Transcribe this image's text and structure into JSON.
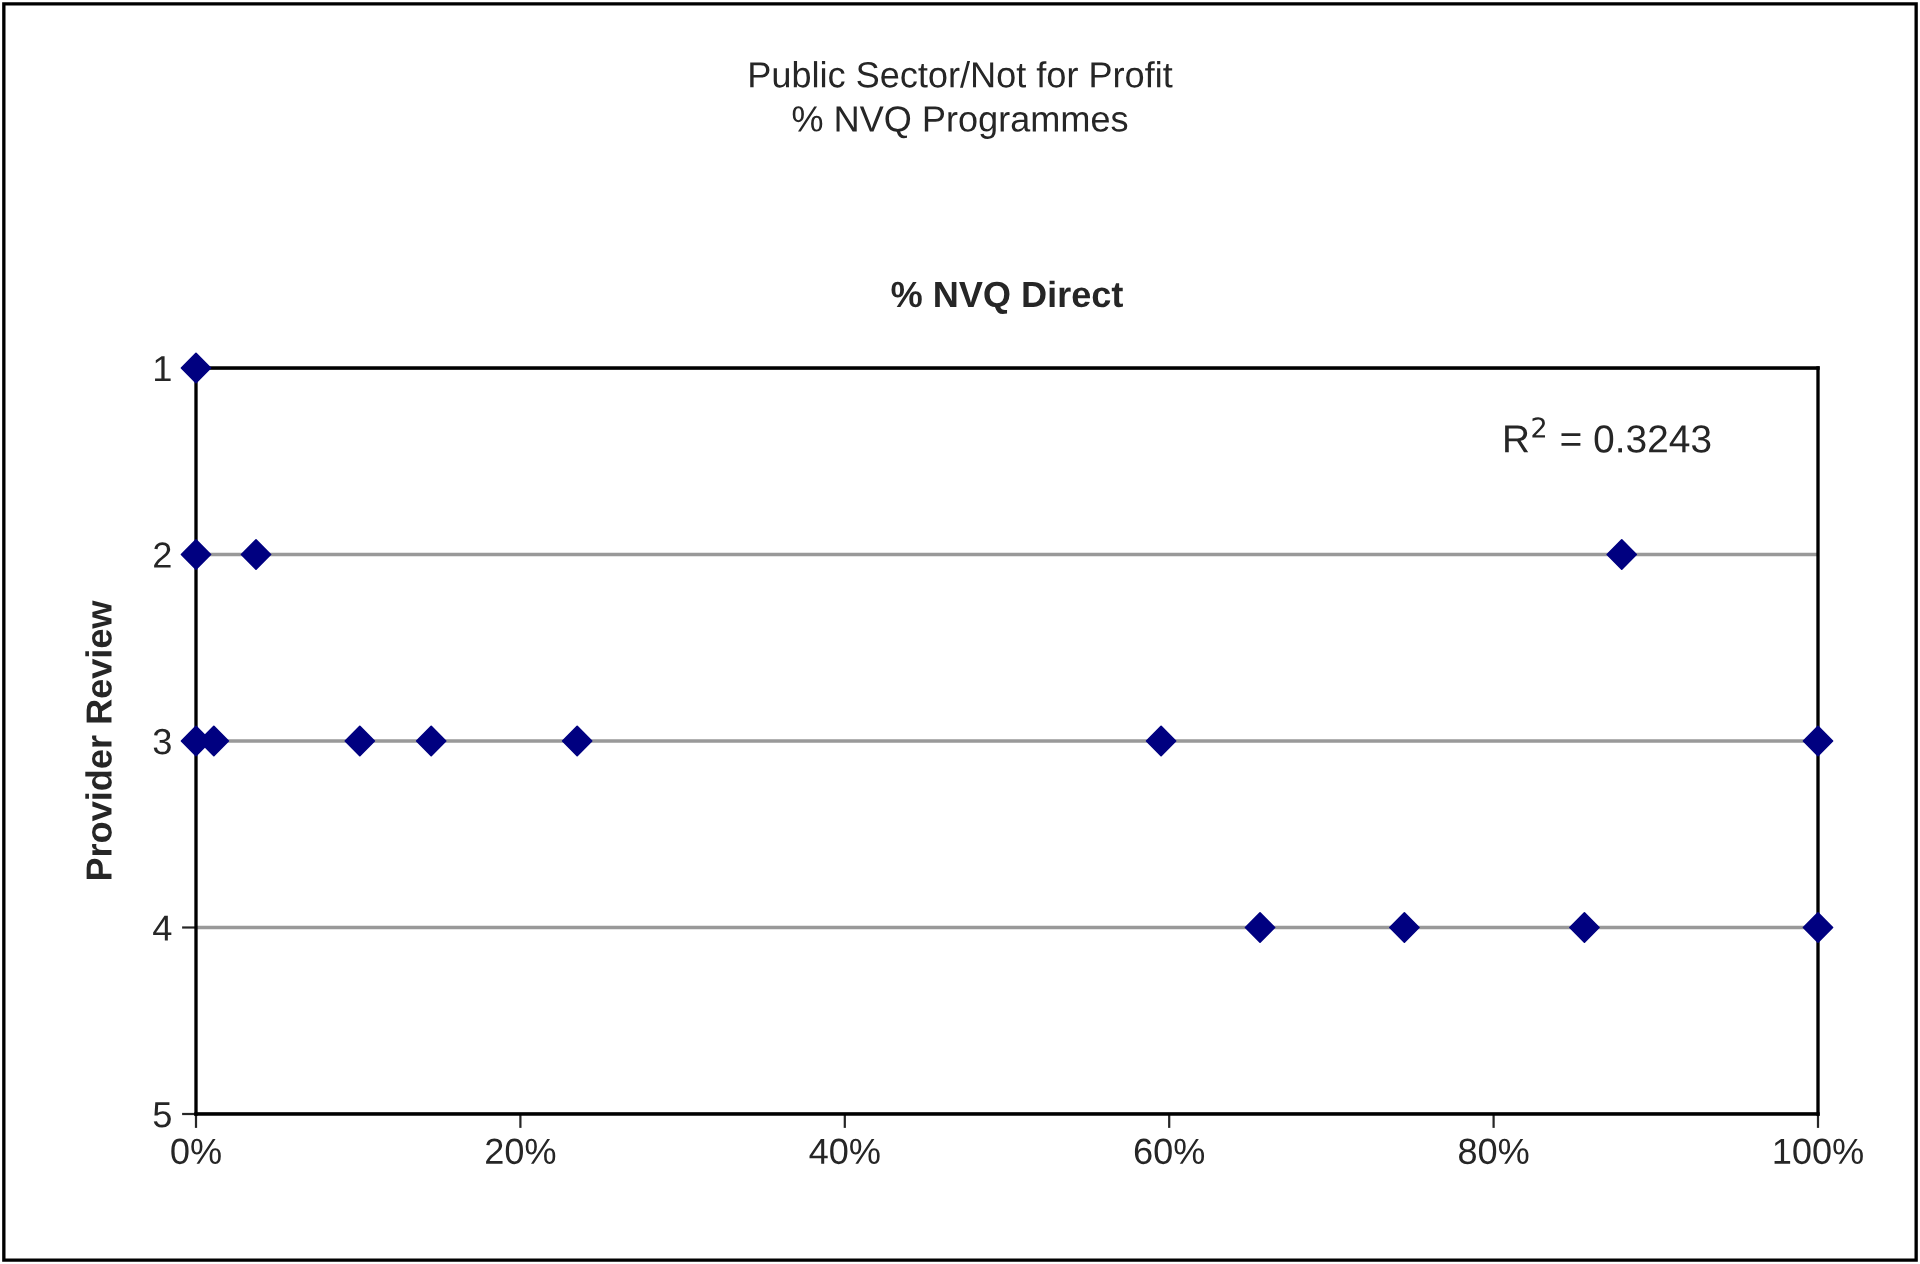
{
  "chart_data": {
    "type": "scatter",
    "title": "Public Sector/Not for Profit\n% NVQ Programmes",
    "subtitle": "% NVQ Direct",
    "ylabel": "Provider Review",
    "annotations": [
      "R$^{2}$ = 0.3243"
    ],
    "marker": "diamond",
    "grid": "y",
    "series": [
      {
        "color": "#000080",
        "x": [
          0,
          0,
          3.7,
          0,
          1.1,
          10.1,
          14.5,
          23.5,
          59.5,
          100,
          65.6,
          74.5,
          85.6,
          100,
          87.9
        ],
        "values": [
          1,
          2,
          2,
          3,
          3,
          3,
          3,
          3,
          3,
          3,
          4,
          4,
          4,
          4,
          2
        ]
      }
    ],
    "xlim": [
      0,
      100
    ],
    "xticks": [
      {
        "value": 0,
        "label": "0%"
      },
      {
        "value": 20,
        "label": "20%"
      },
      {
        "value": 40,
        "label": "40%"
      },
      {
        "value": 60,
        "label": "60%"
      },
      {
        "value": 80,
        "label": "80%"
      },
      {
        "value": 100,
        "label": "100%"
      }
    ],
    "ylim": [
      5,
      1
    ],
    "yticks": [
      1,
      2,
      3,
      4,
      5
    ]
  }
}
